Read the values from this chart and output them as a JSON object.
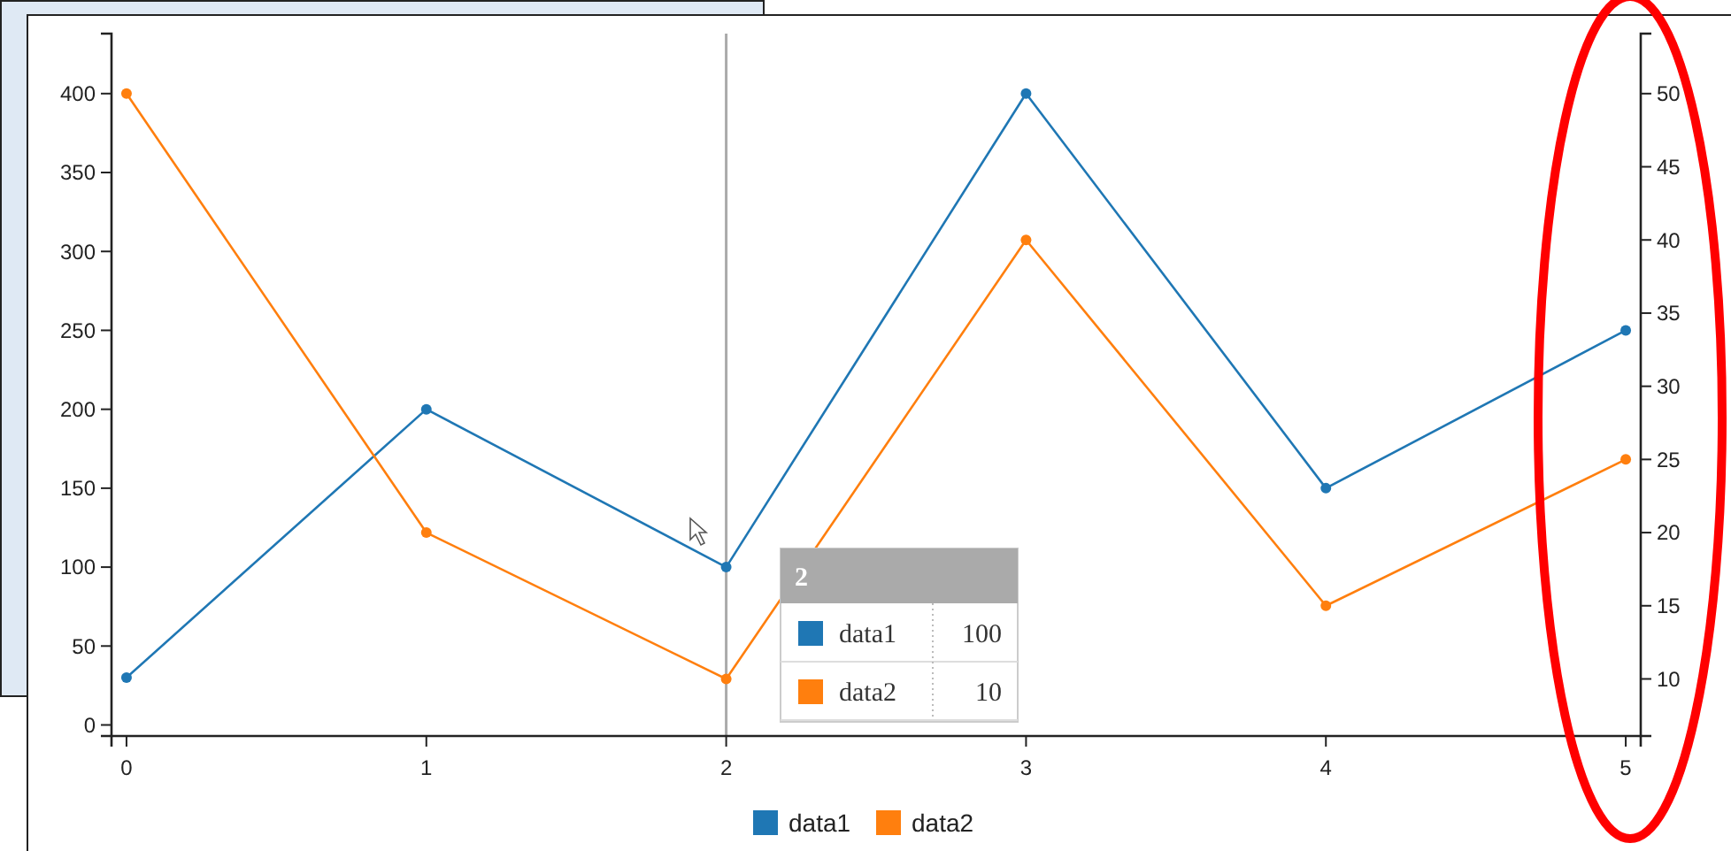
{
  "chart_data": {
    "type": "line",
    "x": [
      0,
      1,
      2,
      3,
      4,
      5
    ],
    "xlim": [
      -0.05,
      5.05
    ],
    "xticks": [
      0,
      1,
      2,
      3,
      4,
      5
    ],
    "ylim": [
      -7,
      438
    ],
    "yticks": [
      0,
      50,
      100,
      150,
      200,
      250,
      300,
      350,
      400
    ],
    "y2lim": [
      6.1,
      54.1
    ],
    "y2ticks": [
      10,
      15,
      20,
      25,
      30,
      35,
      40,
      45,
      50
    ],
    "series": [
      {
        "name": "data1",
        "color": "#1f77b4",
        "values": [
          30,
          200,
          100,
          400,
          150,
          250
        ]
      },
      {
        "name": "data2",
        "color": "#ff7f0e",
        "values": [
          50,
          20,
          10,
          40,
          15,
          25
        ],
        "axis": "y2"
      }
    ],
    "ref_lines": [
      {
        "axis": "x",
        "value": 2,
        "color": "#aaaaaa"
      }
    ],
    "annotations": [
      "2",
      "data1",
      "100",
      "data2",
      "10"
    ],
    "marker": "circle",
    "legend": "bottom",
    "grid": false
  }
}
